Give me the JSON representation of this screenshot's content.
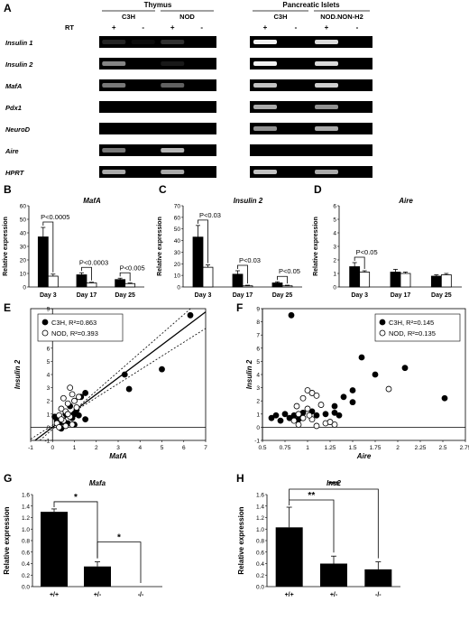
{
  "gel": {
    "panel": "A",
    "groups": [
      {
        "label": "Thymus",
        "subgroups": [
          "C3H",
          "NOD"
        ]
      },
      {
        "label": "Pancreatic Islets",
        "subgroups": [
          "C3H",
          "NOD.NON-H2"
        ]
      }
    ],
    "rt_label": "RT",
    "rt_signs": [
      "+",
      "-",
      "+",
      "-",
      "+",
      "-",
      "+",
      "-"
    ],
    "genes": [
      "Insulin 1",
      "Insulin 2",
      "MafA",
      "Pdx1",
      "NeuroD",
      "Aire",
      "HPRT"
    ],
    "band_intensity": [
      [
        0.15,
        0.05,
        0.2,
        0.0,
        1.0,
        0.0,
        0.9,
        0.0
      ],
      [
        0.55,
        0.0,
        0.1,
        0.0,
        1.0,
        0.0,
        0.9,
        0.0
      ],
      [
        0.5,
        0.0,
        0.4,
        0.0,
        0.8,
        0.0,
        0.85,
        0.0
      ],
      [
        0.0,
        0.0,
        0.0,
        0.0,
        0.7,
        0.0,
        0.6,
        0.0
      ],
      [
        0.0,
        0.0,
        0.0,
        0.0,
        0.6,
        0.0,
        0.7,
        0.0
      ],
      [
        0.5,
        0.0,
        0.75,
        0.0,
        0.0,
        0.0,
        0.0,
        0.0
      ],
      [
        0.7,
        0.0,
        0.7,
        0.0,
        0.8,
        0.0,
        0.7,
        0.0
      ]
    ]
  },
  "colors": {
    "c3h": "#000000",
    "nod": "#ffffff",
    "band": "#f2f2f2",
    "lane_bg": "#000000"
  },
  "chart_data": [
    {
      "panel": "B",
      "type": "bar",
      "title": "MafA",
      "ylabel": "Relative expression",
      "categories": [
        "Day 3",
        "Day 17",
        "Day 25"
      ],
      "ylim": [
        0,
        60
      ],
      "yticks": [
        0,
        10,
        20,
        30,
        40,
        50,
        60
      ],
      "series": [
        {
          "values": [
            37,
            9,
            5.5
          ],
          "errors": [
            7,
            1.5,
            1
          ]
        },
        {
          "values": [
            8,
            3,
            2.5
          ],
          "errors": [
            1.5,
            0.5,
            0.5
          ]
        }
      ],
      "annotations": [
        "P<0.0005",
        "P<0.0003",
        "P<0.005"
      ]
    },
    {
      "panel": "C",
      "type": "bar",
      "title": "Insulin 2",
      "ylabel": "Relative expression",
      "categories": [
        "Day 3",
        "Day 17",
        "Day 25"
      ],
      "ylim": [
        0,
        70
      ],
      "yticks": [
        0,
        10,
        20,
        30,
        40,
        50,
        60,
        70
      ],
      "series": [
        {
          "values": [
            43,
            11,
            3.5
          ],
          "errors": [
            10,
            3,
            1
          ]
        },
        {
          "values": [
            17,
            1,
            1
          ],
          "errors": [
            2,
            0.5,
            0.5
          ]
        }
      ],
      "annotations": [
        "P<0.03",
        "P<0.03",
        "P<0.05"
      ]
    },
    {
      "panel": "D",
      "type": "bar",
      "title": "Aire",
      "ylabel": "Relative expression",
      "categories": [
        "Day 3",
        "Day 17",
        "Day 25"
      ],
      "ylim": [
        0,
        6
      ],
      "yticks": [
        0,
        1,
        2,
        3,
        4,
        5,
        6
      ],
      "series": [
        {
          "values": [
            1.5,
            1.1,
            0.8
          ],
          "errors": [
            0.3,
            0.2,
            0.1
          ]
        },
        {
          "values": [
            1.1,
            1.0,
            0.9
          ],
          "errors": [
            0.1,
            0.1,
            0.1
          ]
        }
      ],
      "annotations": [
        "P<0.05"
      ]
    },
    {
      "panel": "E",
      "type": "scatter",
      "xlabel": "MafA",
      "ylabel": "Insulin 2",
      "xlim": [
        -1,
        7
      ],
      "ylim": [
        -1,
        9
      ],
      "xticks": [
        -1,
        0,
        1,
        2,
        3,
        4,
        5,
        6,
        7
      ],
      "yticks": [
        -1,
        0,
        1,
        2,
        3,
        4,
        5,
        6,
        7,
        8,
        9
      ],
      "series": [
        {
          "name": "C3H, R²=0.863",
          "filled": true,
          "points": [
            [
              6.3,
              8.5
            ],
            [
              3.3,
              4.0
            ],
            [
              5.0,
              4.4
            ],
            [
              3.5,
              2.9
            ],
            [
              1.5,
              2.6
            ],
            [
              1.3,
              2.3
            ],
            [
              1.0,
              1.0
            ],
            [
              1.5,
              0.6
            ],
            [
              0.8,
              1.6
            ],
            [
              0.5,
              0.4
            ],
            [
              0.3,
              0.2
            ],
            [
              0.6,
              1.0
            ],
            [
              1.1,
              1.3
            ],
            [
              0.2,
              0.5
            ],
            [
              0.9,
              0.7
            ],
            [
              0.4,
              -0.1
            ],
            [
              0.7,
              0.3
            ],
            [
              1.2,
              0.9
            ],
            [
              0.1,
              0.8
            ],
            [
              1.0,
              0.2
            ]
          ]
        },
        {
          "name": "NOD, R²=0.393",
          "filled": false,
          "points": [
            [
              0.8,
              3.0
            ],
            [
              0.5,
              2.2
            ],
            [
              0.9,
              2.5
            ],
            [
              0.7,
              1.8
            ],
            [
              1.0,
              2.0
            ],
            [
              0.4,
              1.4
            ],
            [
              0.6,
              1.2
            ],
            [
              0.3,
              0.9
            ],
            [
              0.8,
              0.8
            ],
            [
              0.5,
              0.5
            ],
            [
              1.1,
              1.5
            ],
            [
              0.2,
              0.3
            ],
            [
              0.9,
              0.2
            ],
            [
              0.6,
              0.1
            ],
            [
              1.2,
              2.3
            ],
            [
              0.4,
              0.6
            ],
            [
              0.7,
              1.0
            ],
            [
              0.3,
              0.0
            ]
          ]
        }
      ],
      "fit": {
        "slope": 1.25,
        "intercept": 0.0
      },
      "ci_low": {
        "slope": 1.05,
        "intercept": 0.15
      },
      "ci_high": {
        "slope": 1.45,
        "intercept": -0.15
      }
    },
    {
      "panel": "F",
      "type": "scatter",
      "xlabel": "Aire",
      "ylabel": "Insulin 2",
      "xlim": [
        0.5,
        2.75
      ],
      "ylim": [
        -1,
        9
      ],
      "xticks": [
        "0.5",
        "0.75",
        "1",
        "1.25",
        "1.5",
        "1.75",
        "2",
        "2.25",
        "2.5",
        "2.75"
      ],
      "yticks": [
        -1,
        0,
        1,
        2,
        3,
        4,
        5,
        6,
        7,
        8,
        9
      ],
      "series": [
        {
          "name": "C3H, R²=0.145",
          "filled": true,
          "points": [
            [
              0.82,
              8.5
            ],
            [
              1.6,
              5.3
            ],
            [
              2.08,
              4.5
            ],
            [
              1.75,
              4.0
            ],
            [
              1.5,
              2.8
            ],
            [
              2.52,
              2.2
            ],
            [
              1.4,
              2.3
            ],
            [
              1.3,
              1.6
            ],
            [
              1.5,
              1.9
            ],
            [
              0.6,
              0.7
            ],
            [
              0.65,
              0.9
            ],
            [
              0.7,
              0.5
            ],
            [
              0.75,
              1.0
            ],
            [
              0.8,
              0.7
            ],
            [
              0.85,
              0.9
            ],
            [
              0.9,
              0.6
            ],
            [
              0.95,
              1.1
            ],
            [
              1.05,
              1.2
            ],
            [
              1.1,
              0.9
            ],
            [
              1.2,
              1.0
            ],
            [
              1.3,
              1.1
            ],
            [
              1.35,
              0.9
            ]
          ]
        },
        {
          "name": "NOD, R²=0.135",
          "filled": false,
          "points": [
            [
              1.9,
              2.9
            ],
            [
              1.0,
              2.8
            ],
            [
              1.05,
              2.6
            ],
            [
              1.1,
              2.4
            ],
            [
              0.95,
              2.2
            ],
            [
              1.15,
              1.7
            ],
            [
              1.0,
              1.4
            ],
            [
              0.9,
              1.0
            ],
            [
              1.05,
              0.6
            ],
            [
              1.2,
              0.3
            ],
            [
              1.3,
              0.2
            ],
            [
              1.1,
              0.1
            ],
            [
              0.9,
              0.2
            ],
            [
              0.85,
              0.5
            ],
            [
              0.95,
              0.7
            ],
            [
              1.25,
              0.4
            ],
            [
              0.88,
              1.6
            ],
            [
              1.02,
              0.9
            ]
          ]
        }
      ]
    },
    {
      "panel": "G",
      "type": "bar",
      "title": "Mafa",
      "ylabel": "Relative expression",
      "categories": [
        "+/+",
        "+/-",
        "-/-"
      ],
      "ylim": [
        0,
        1.6
      ],
      "yticks": [
        "0.0",
        "0.2",
        "0.4",
        "0.6",
        "0.8",
        "1.0",
        "1.2",
        "1.4",
        "1.6"
      ],
      "values": [
        1.3,
        0.35,
        0.0
      ],
      "errors": [
        0.05,
        0.08,
        0.0
      ],
      "annotations": [
        "*",
        "*"
      ]
    },
    {
      "panel": "H",
      "type": "bar",
      "title": "Ins2",
      "ylabel": "Relative expression",
      "categories": [
        "+/+",
        "+/-",
        "-/-"
      ],
      "ylim": [
        0,
        1.6
      ],
      "yticks": [
        "0.0",
        "0.2",
        "0.4",
        "0.6",
        "0.8",
        "1.0",
        "1.2",
        "1.4",
        "1.6"
      ],
      "values": [
        1.03,
        0.4,
        0.3
      ],
      "errors": [
        0.35,
        0.13,
        0.13
      ],
      "annotations": [
        "**",
        "***"
      ]
    }
  ]
}
